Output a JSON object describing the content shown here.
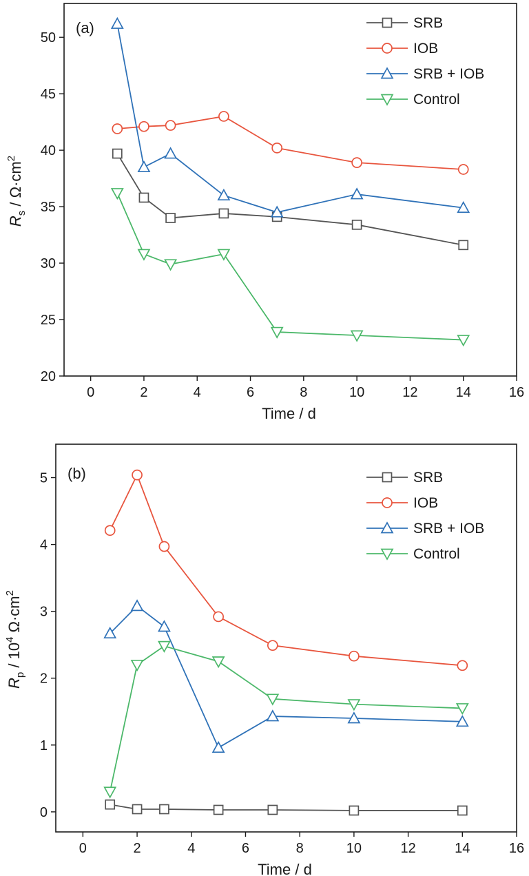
{
  "colors": {
    "SRB": "#555555",
    "IOB": "#e8553e",
    "SRB + IOB": "#2f72b8",
    "Control": "#4cb86a"
  },
  "chart_data": [
    {
      "type": "line",
      "panel_label": "(a)",
      "xlabel": "Time / d",
      "ylabel_main": "R",
      "ylabel_sub": "s",
      "ylabel_rest": " / Ω·cm",
      "ylabel_sup": "2",
      "xlim": [
        -1,
        16
      ],
      "ylim": [
        20,
        53
      ],
      "xticks": [
        0,
        2,
        4,
        6,
        8,
        10,
        12,
        14,
        16
      ],
      "yticks": [
        20,
        25,
        30,
        35,
        40,
        45,
        50
      ],
      "legend_position": "top-right",
      "x": [
        1,
        2,
        3,
        5,
        7,
        10,
        14
      ],
      "series": [
        {
          "name": "SRB",
          "marker": "square",
          "values": [
            39.7,
            35.8,
            34.0,
            34.4,
            34.1,
            33.4,
            31.6
          ]
        },
        {
          "name": "IOB",
          "marker": "circle",
          "values": [
            41.9,
            42.1,
            42.2,
            43.0,
            40.2,
            38.9,
            38.3
          ]
        },
        {
          "name": "SRB + IOB",
          "marker": "triangle-up",
          "values": [
            51.2,
            38.5,
            39.7,
            36.0,
            34.5,
            36.1,
            34.9
          ]
        },
        {
          "name": "Control",
          "marker": "triangle-down",
          "values": [
            36.2,
            30.8,
            29.9,
            30.8,
            23.9,
            23.6,
            23.2
          ]
        }
      ]
    },
    {
      "type": "line",
      "panel_label": "(b)",
      "xlabel": "Time / d",
      "ylabel_main": "R",
      "ylabel_sub": "p",
      "ylabel_rest": " / 10",
      "ylabel_sup": "4",
      "ylabel_rest2": " Ω·cm",
      "ylabel_sup2": "2",
      "xlim": [
        -1,
        16
      ],
      "ylim": [
        -0.3,
        5.5
      ],
      "xticks": [
        0,
        2,
        4,
        6,
        8,
        10,
        12,
        14,
        16
      ],
      "yticks": [
        0,
        1,
        2,
        3,
        4,
        5
      ],
      "legend_position": "top-right",
      "x": [
        1,
        2,
        3,
        5,
        7,
        10,
        14
      ],
      "series": [
        {
          "name": "SRB",
          "marker": "square",
          "values": [
            0.11,
            0.04,
            0.04,
            0.03,
            0.03,
            0.02,
            0.02
          ]
        },
        {
          "name": "IOB",
          "marker": "circle",
          "values": [
            4.21,
            5.04,
            3.97,
            2.92,
            2.49,
            2.33,
            2.19
          ]
        },
        {
          "name": "SRB + IOB",
          "marker": "triangle-up",
          "values": [
            2.67,
            3.08,
            2.77,
            0.96,
            1.43,
            1.4,
            1.35
          ]
        },
        {
          "name": "Control",
          "marker": "triangle-down",
          "values": [
            0.3,
            2.2,
            2.48,
            2.25,
            1.69,
            1.61,
            1.55
          ]
        }
      ]
    }
  ]
}
